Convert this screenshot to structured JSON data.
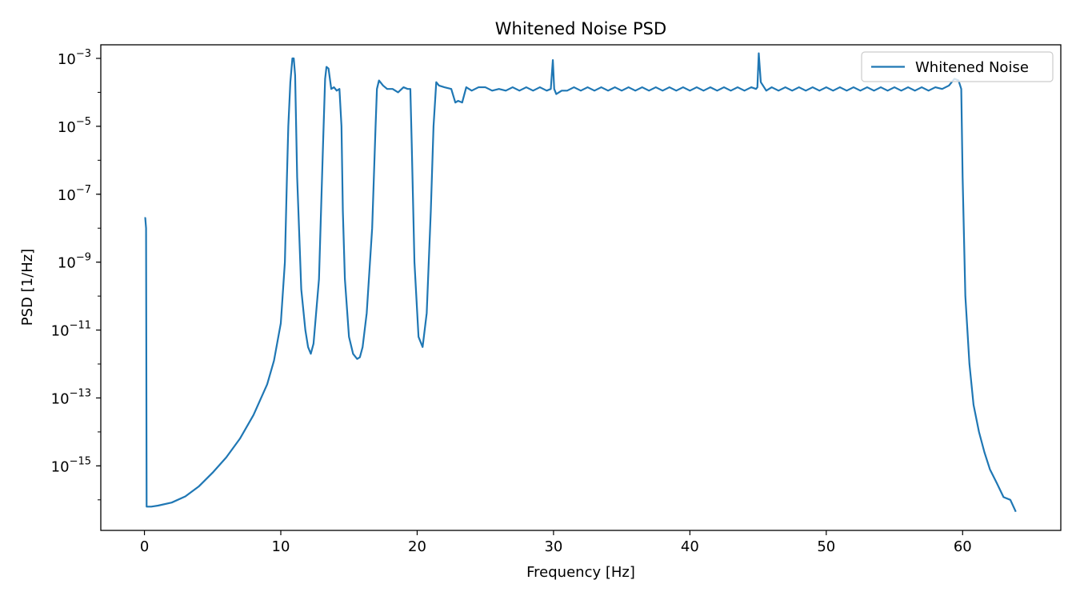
{
  "chart_data": {
    "type": "line",
    "title": "Whitened Noise PSD",
    "xlabel": "Frequency [Hz]",
    "ylabel": "PSD [1/Hz]",
    "xscale": "linear",
    "yscale": "log",
    "xlim": [
      -3.2,
      67.2
    ],
    "ylim_log10": [
      -16.9,
      -2.6
    ],
    "xticks": [
      0,
      10,
      20,
      30,
      40,
      50,
      60
    ],
    "xtick_labels": [
      "0",
      "10",
      "20",
      "30",
      "40",
      "50",
      "60"
    ],
    "yticks_log10": [
      -15,
      -13,
      -11,
      -9,
      -7,
      -5,
      -3
    ],
    "ytick_base": "10",
    "ytick_exponents": [
      "−15",
      "−13",
      "−11",
      "−9",
      "−7",
      "−5",
      "−3"
    ],
    "legend": {
      "location": "upper right",
      "entries": [
        "Whitened Noise"
      ]
    },
    "series": [
      {
        "name": "Whitened Noise",
        "color": "#1f77b4",
        "x": [
          0,
          0.06,
          0.12,
          0.16,
          0.2,
          0.5,
          1,
          2,
          3,
          4,
          5,
          6,
          7,
          8,
          9,
          9.5,
          10,
          10.3,
          10.45,
          10.55,
          10.7,
          10.85,
          10.95,
          11.05,
          11.2,
          11.5,
          11.8,
          12,
          12.2,
          12.4,
          12.8,
          13.1,
          13.25,
          13.35,
          13.5,
          13.7,
          13.9,
          14.1,
          14.3,
          14.45,
          14.55,
          14.7,
          15.0,
          15.3,
          15.6,
          15.8,
          16.0,
          16.3,
          16.7,
          16.95,
          17.05,
          17.2,
          17.5,
          17.8,
          18.2,
          18.6,
          19.0,
          19.3,
          19.5,
          19.6,
          19.8,
          20.1,
          20.4,
          20.7,
          21.0,
          21.2,
          21.4,
          21.6,
          22.0,
          22.5,
          22.8,
          23.0,
          23.3,
          23.6,
          24.0,
          24.5,
          25.0,
          25.5,
          26.0,
          26.5,
          27.0,
          27.5,
          28.0,
          28.5,
          29.0,
          29.5,
          29.8,
          29.95,
          30.05,
          30.2,
          30.6,
          31.0,
          31.5,
          32.0,
          32.5,
          33.0,
          33.5,
          34.0,
          34.5,
          35.0,
          35.5,
          36.0,
          36.5,
          37.0,
          37.5,
          38.0,
          38.5,
          39.0,
          39.5,
          40.0,
          40.5,
          41.0,
          41.5,
          42.0,
          42.5,
          43.0,
          43.5,
          44.0,
          44.5,
          44.85,
          44.95,
          45.05,
          45.2,
          45.6,
          46.0,
          46.5,
          47.0,
          47.5,
          48.0,
          48.5,
          49.0,
          49.5,
          50.0,
          50.5,
          51.0,
          51.5,
          52.0,
          52.5,
          53.0,
          53.5,
          54.0,
          54.5,
          55.0,
          55.5,
          56.0,
          56.5,
          57.0,
          57.5,
          58.0,
          58.5,
          59.0,
          59.4,
          59.7,
          59.9,
          60.0,
          60.2,
          60.5,
          60.8,
          61.2,
          61.6,
          62.0,
          62.5,
          63.0,
          63.5,
          63.9,
          64.0
        ],
        "log10_y": [
          -7.7,
          -7.7,
          -8.0,
          -16.2,
          -16.2,
          -16.2,
          -16.17,
          -16.08,
          -15.9,
          -15.6,
          -15.2,
          -14.75,
          -14.2,
          -13.5,
          -12.6,
          -11.9,
          -10.8,
          -9.0,
          -6.5,
          -5.0,
          -3.7,
          -3.0,
          -3.0,
          -3.5,
          -6.5,
          -9.8,
          -11.0,
          -11.5,
          -11.7,
          -11.4,
          -9.5,
          -5.5,
          -3.6,
          -3.25,
          -3.3,
          -3.9,
          -3.85,
          -3.95,
          -3.9,
          -5.0,
          -7.5,
          -9.5,
          -11.2,
          -11.7,
          -11.85,
          -11.8,
          -11.5,
          -10.5,
          -8.0,
          -5.0,
          -3.9,
          -3.65,
          -3.8,
          -3.9,
          -3.9,
          -4.0,
          -3.85,
          -3.9,
          -3.9,
          -5.5,
          -9.0,
          -11.2,
          -11.5,
          -10.5,
          -7.5,
          -5.0,
          -3.7,
          -3.8,
          -3.85,
          -3.9,
          -4.3,
          -4.25,
          -4.3,
          -3.85,
          -3.95,
          -3.85,
          -3.85,
          -3.95,
          -3.9,
          -3.95,
          -3.85,
          -3.95,
          -3.85,
          -3.95,
          -3.85,
          -3.95,
          -3.9,
          -3.05,
          -3.9,
          -4.05,
          -3.95,
          -3.95,
          -3.85,
          -3.95,
          -3.85,
          -3.95,
          -3.85,
          -3.95,
          -3.85,
          -3.95,
          -3.85,
          -3.95,
          -3.85,
          -3.95,
          -3.85,
          -3.95,
          -3.85,
          -3.95,
          -3.85,
          -3.95,
          -3.85,
          -3.95,
          -3.85,
          -3.95,
          -3.85,
          -3.95,
          -3.85,
          -3.95,
          -3.85,
          -3.9,
          -3.85,
          -2.85,
          -3.7,
          -3.95,
          -3.85,
          -3.95,
          -3.85,
          -3.95,
          -3.85,
          -3.95,
          -3.85,
          -3.95,
          -3.85,
          -3.95,
          -3.85,
          -3.95,
          -3.85,
          -3.95,
          -3.85,
          -3.95,
          -3.85,
          -3.95,
          -3.85,
          -3.95,
          -3.85,
          -3.95,
          -3.85,
          -3.95,
          -3.85,
          -3.9,
          -3.8,
          -3.6,
          -3.65,
          -3.9,
          -6.5,
          -10.0,
          -12.0,
          -13.2,
          -14.0,
          -14.6,
          -15.1,
          -15.5,
          -15.92,
          -16.0,
          -16.35
        ]
      }
    ]
  }
}
